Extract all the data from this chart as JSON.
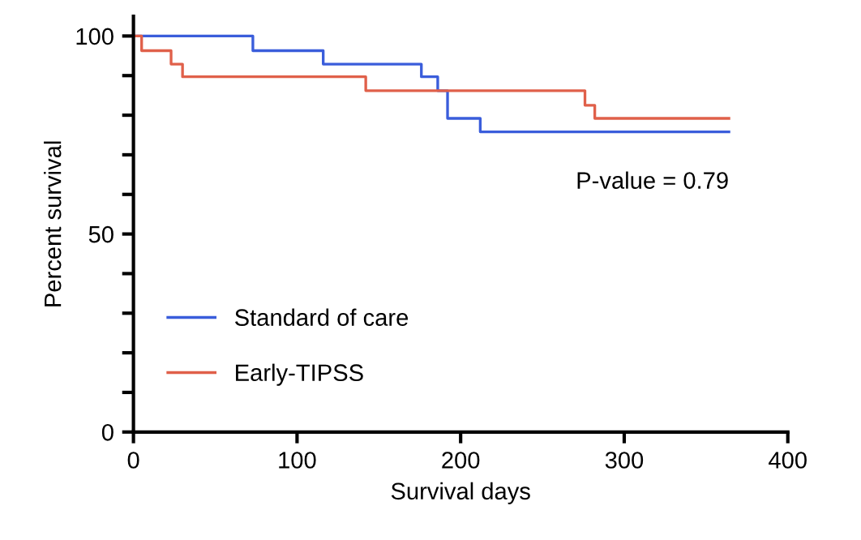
{
  "chart_data": {
    "type": "step",
    "xlabel": "Survival days",
    "ylabel": "Percent survival",
    "xlim": [
      0,
      400
    ],
    "ylim": [
      0,
      105
    ],
    "xticks": [
      0,
      100,
      200,
      300,
      400
    ],
    "yticks": [
      0,
      {
        "value": 10,
        "label": null
      },
      {
        "value": 20,
        "label": null
      },
      {
        "value": 30,
        "label": null
      },
      {
        "value": 40,
        "label": null
      },
      50,
      {
        "value": 60,
        "label": null
      },
      {
        "value": 70,
        "label": null
      },
      {
        "value": 80,
        "label": null
      },
      {
        "value": 90,
        "label": null
      },
      100
    ],
    "grid": false,
    "legend": "bottom left",
    "marker": "none",
    "line_style": "solid",
    "annotations": [
      "P-value = 0.79"
    ],
    "series": [
      {
        "name": "Standard of care",
        "color": "#3a5ddb",
        "x": [
          0,
          73,
          116,
          176,
          186,
          192,
          212,
          364
        ],
        "values": [
          100,
          96.3,
          92.9,
          89.7,
          86.2,
          79.2,
          75.8,
          75.8
        ]
      },
      {
        "name": "Early-TIPSS",
        "color": "#e0604a",
        "x": [
          0,
          5,
          23,
          30,
          142,
          276,
          282,
          364
        ],
        "values": [
          100,
          96.3,
          92.9,
          89.7,
          86.2,
          82.5,
          79.2,
          79.2
        ]
      }
    ]
  }
}
